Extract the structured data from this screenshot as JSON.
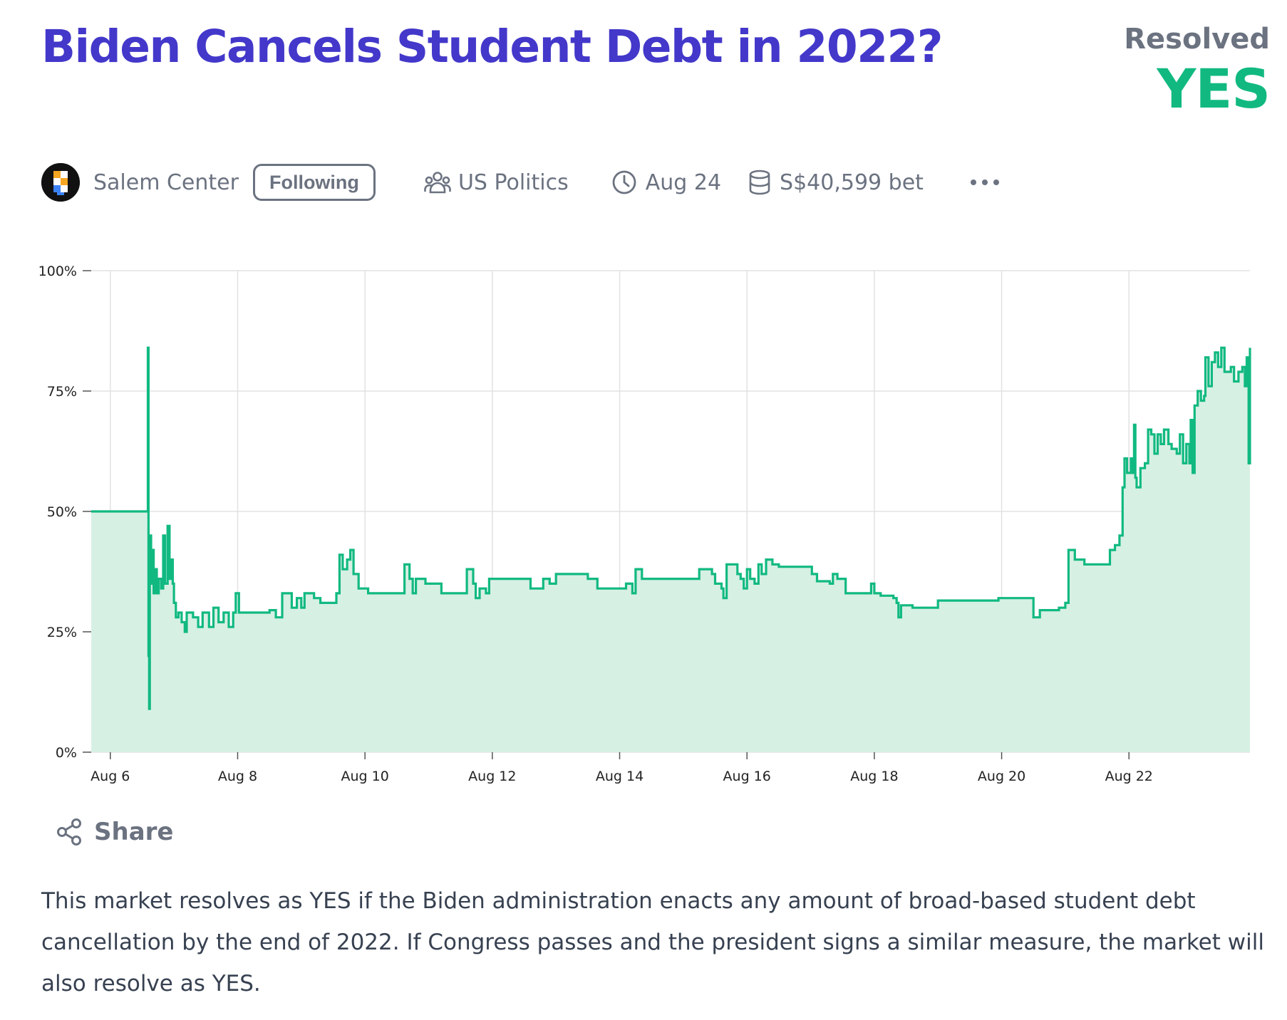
{
  "market": {
    "title": "Biden Cancels Student Debt in 2022?",
    "resolution_label": "Resolved",
    "resolution_value": "YES"
  },
  "creator": {
    "name": "Salem Center",
    "follow_label": "Following"
  },
  "group": {
    "name": "US Politics",
    "icon": "users-icon"
  },
  "close_time": {
    "label": "Aug 24",
    "icon": "clock-icon"
  },
  "volume": {
    "label": "S$40,599 bet",
    "icon": "database-icon"
  },
  "more_icon": "ellipsis-icon",
  "share": {
    "label": "Share",
    "icon": "share-icon"
  },
  "description": "This market resolves as YES if the Biden administration enacts any amount of broad-based student debt cancellation by the end of 2022. If Congress passes and the president signs a similar measure, the market will also resolve as YES.",
  "colors": {
    "title": "#4338ca",
    "yes": "#11b981",
    "line": "#11b981",
    "fill": "#d7f0e4",
    "muted": "#6b7280"
  },
  "chart_data": {
    "type": "line",
    "step": true,
    "y_ticks": [
      "0%",
      "25%",
      "50%",
      "75%",
      "100%"
    ],
    "x_ticks": [
      "Aug 6",
      "Aug 8",
      "Aug 10",
      "Aug 12",
      "Aug 14",
      "Aug 16",
      "Aug 18",
      "Aug 20",
      "Aug 22"
    ],
    "x_tick_days": [
      6,
      8,
      10,
      12,
      14,
      16,
      18,
      20,
      22
    ],
    "xlim": [
      5.7,
      23.9
    ],
    "ylim": [
      0,
      100
    ],
    "grid": true,
    "series": [
      {
        "points": [
          [
            5.7,
            50
          ],
          [
            6.58,
            50
          ],
          [
            6.59,
            84
          ],
          [
            6.6,
            20
          ],
          [
            6.61,
            9
          ],
          [
            6.62,
            45
          ],
          [
            6.64,
            35
          ],
          [
            6.66,
            42
          ],
          [
            6.68,
            33
          ],
          [
            6.7,
            38
          ],
          [
            6.73,
            33
          ],
          [
            6.76,
            36
          ],
          [
            6.8,
            34
          ],
          [
            6.83,
            45
          ],
          [
            6.86,
            35
          ],
          [
            6.9,
            47
          ],
          [
            6.93,
            36
          ],
          [
            6.96,
            40
          ],
          [
            6.98,
            35
          ],
          [
            7.0,
            31
          ],
          [
            7.03,
            28
          ],
          [
            7.07,
            29
          ],
          [
            7.12,
            27
          ],
          [
            7.17,
            25
          ],
          [
            7.2,
            29
          ],
          [
            7.3,
            28
          ],
          [
            7.38,
            26
          ],
          [
            7.45,
            29
          ],
          [
            7.55,
            26
          ],
          [
            7.62,
            30
          ],
          [
            7.7,
            27
          ],
          [
            7.78,
            29
          ],
          [
            7.86,
            26
          ],
          [
            7.93,
            29
          ],
          [
            7.97,
            33
          ],
          [
            8.02,
            29
          ],
          [
            8.3,
            29
          ],
          [
            8.5,
            29.5
          ],
          [
            8.6,
            28
          ],
          [
            8.7,
            33
          ],
          [
            8.82,
            33
          ],
          [
            8.85,
            30
          ],
          [
            8.93,
            32
          ],
          [
            9.0,
            30
          ],
          [
            9.05,
            33
          ],
          [
            9.2,
            32
          ],
          [
            9.3,
            31
          ],
          [
            9.55,
            33
          ],
          [
            9.6,
            41
          ],
          [
            9.65,
            38
          ],
          [
            9.72,
            40
          ],
          [
            9.77,
            42
          ],
          [
            9.82,
            37
          ],
          [
            9.9,
            34
          ],
          [
            10.05,
            33
          ],
          [
            10.6,
            33
          ],
          [
            10.62,
            39
          ],
          [
            10.7,
            36
          ],
          [
            10.75,
            33
          ],
          [
            10.8,
            36
          ],
          [
            10.95,
            35
          ],
          [
            11.2,
            33
          ],
          [
            11.55,
            33
          ],
          [
            11.6,
            38
          ],
          [
            11.7,
            35
          ],
          [
            11.74,
            32
          ],
          [
            11.8,
            34
          ],
          [
            11.9,
            33
          ],
          [
            11.95,
            36
          ],
          [
            12.4,
            36
          ],
          [
            12.6,
            34
          ],
          [
            12.8,
            36
          ],
          [
            12.9,
            35
          ],
          [
            13.0,
            37
          ],
          [
            13.5,
            36
          ],
          [
            13.65,
            34
          ],
          [
            13.95,
            34
          ],
          [
            14.1,
            35
          ],
          [
            14.2,
            33
          ],
          [
            14.25,
            38
          ],
          [
            14.35,
            36
          ],
          [
            14.8,
            36
          ],
          [
            15.1,
            36
          ],
          [
            15.25,
            38
          ],
          [
            15.45,
            37
          ],
          [
            15.5,
            35
          ],
          [
            15.6,
            34
          ],
          [
            15.63,
            32
          ],
          [
            15.68,
            39
          ],
          [
            15.85,
            37
          ],
          [
            15.9,
            36
          ],
          [
            15.95,
            34
          ],
          [
            16.0,
            38
          ],
          [
            16.05,
            36
          ],
          [
            16.12,
            35
          ],
          [
            16.18,
            39
          ],
          [
            16.23,
            37
          ],
          [
            16.3,
            40
          ],
          [
            16.4,
            39
          ],
          [
            16.5,
            38.5
          ],
          [
            16.9,
            38.5
          ],
          [
            17.02,
            37
          ],
          [
            17.1,
            35.5
          ],
          [
            17.3,
            35
          ],
          [
            17.35,
            37
          ],
          [
            17.42,
            36
          ],
          [
            17.55,
            33
          ],
          [
            17.85,
            33
          ],
          [
            17.95,
            35
          ],
          [
            18.0,
            33
          ],
          [
            18.1,
            32.5
          ],
          [
            18.3,
            32
          ],
          [
            18.35,
            31
          ],
          [
            18.38,
            28
          ],
          [
            18.42,
            30.5
          ],
          [
            18.6,
            30
          ],
          [
            18.9,
            30
          ],
          [
            19.0,
            31.5
          ],
          [
            19.6,
            31.5
          ],
          [
            19.95,
            32
          ],
          [
            20.45,
            32
          ],
          [
            20.5,
            28
          ],
          [
            20.6,
            29.5
          ],
          [
            20.9,
            30
          ],
          [
            21.0,
            31
          ],
          [
            21.05,
            42
          ],
          [
            21.15,
            40
          ],
          [
            21.3,
            39
          ],
          [
            21.65,
            39
          ],
          [
            21.7,
            42
          ],
          [
            21.78,
            43
          ],
          [
            21.85,
            45
          ],
          [
            21.9,
            55
          ],
          [
            21.93,
            61
          ],
          [
            21.97,
            58
          ],
          [
            22.03,
            61
          ],
          [
            22.05,
            58
          ],
          [
            22.08,
            68
          ],
          [
            22.1,
            57
          ],
          [
            22.12,
            55
          ],
          [
            22.18,
            59
          ],
          [
            22.25,
            60
          ],
          [
            22.3,
            67
          ],
          [
            22.35,
            66
          ],
          [
            22.4,
            62
          ],
          [
            22.45,
            66
          ],
          [
            22.5,
            64
          ],
          [
            22.55,
            67
          ],
          [
            22.62,
            64
          ],
          [
            22.67,
            63
          ],
          [
            22.75,
            62
          ],
          [
            22.8,
            66
          ],
          [
            22.85,
            60
          ],
          [
            22.9,
            64
          ],
          [
            22.95,
            60
          ],
          [
            22.97,
            69
          ],
          [
            23.0,
            58
          ],
          [
            23.03,
            72
          ],
          [
            23.08,
            75
          ],
          [
            23.13,
            73
          ],
          [
            23.18,
            74
          ],
          [
            23.2,
            82
          ],
          [
            23.25,
            76
          ],
          [
            23.3,
            81
          ],
          [
            23.35,
            83
          ],
          [
            23.4,
            80
          ],
          [
            23.45,
            84
          ],
          [
            23.5,
            79
          ],
          [
            23.6,
            80
          ],
          [
            23.65,
            77
          ],
          [
            23.72,
            79
          ],
          [
            23.78,
            80
          ],
          [
            23.82,
            76
          ],
          [
            23.85,
            82
          ],
          [
            23.88,
            60
          ],
          [
            23.9,
            84
          ]
        ]
      }
    ]
  }
}
